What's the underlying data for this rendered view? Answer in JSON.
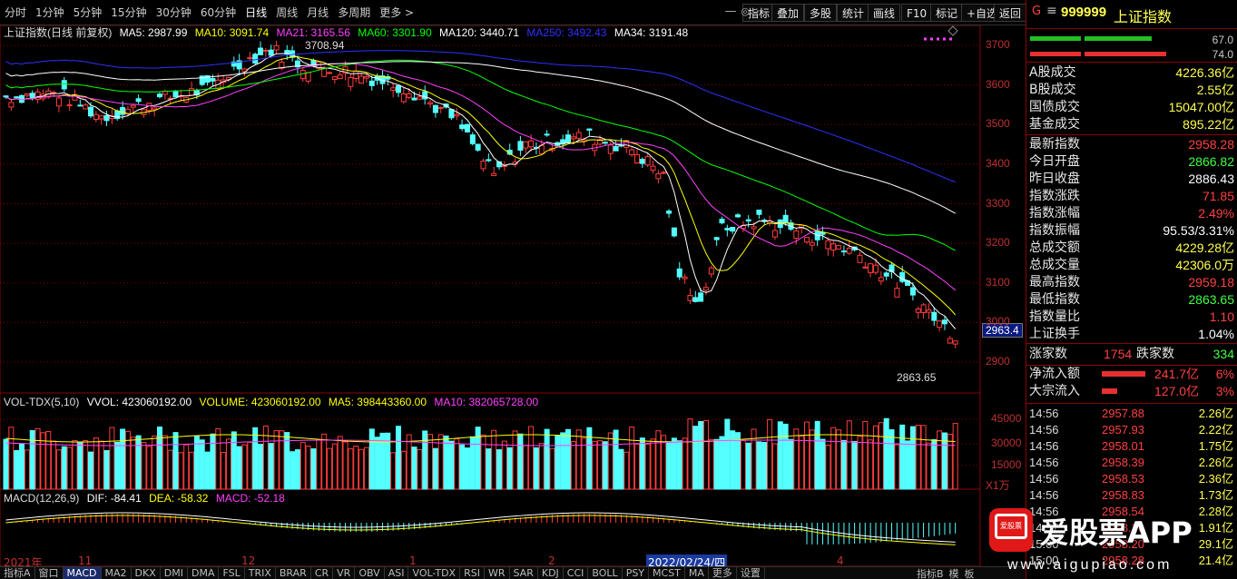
{
  "toolbar": {
    "periods": [
      "分时",
      "1分钟",
      "5分钟",
      "15分钟",
      "30分钟",
      "60分钟",
      "日线",
      "周线",
      "月线",
      "多周期",
      "更多 >"
    ],
    "selected_period": "日线",
    "right_buttons": [
      "指标",
      "叠加",
      "多股",
      "统计",
      "画线",
      "F10",
      "标记",
      "+自选",
      "返回"
    ]
  },
  "colors": {
    "up": "#ff3c3c",
    "down": "#54ffff",
    "ma5": "#ffffff",
    "ma10": "#ffff00",
    "ma21": "#ff40ff",
    "ma60": "#00ff00",
    "ma120": "#ffffff",
    "ma250": "#3030ff",
    "grid": "#8b0000"
  },
  "main_legend": {
    "title": "上证指数(日线 前复权)",
    "ma5": "MA5: 2987.99",
    "ma10": "MA10: 3091.74",
    "ma21": "MA21: 3165.56",
    "ma60": "MA60: 3301.90",
    "ma120": "MA120: 3440.71",
    "ma250": "MA250: 3492.43",
    "ma34": "MA34: 3191.48"
  },
  "annotations": {
    "high": "3708.94",
    "low": "2863.65",
    "current": "2963.4"
  },
  "price_axis": [
    "3700",
    "3600",
    "3500",
    "3400",
    "3300",
    "3200",
    "3100",
    "3000",
    "2900"
  ],
  "volume_legend": {
    "name": "VOL-TDX(5,10)",
    "vvol": "VVOL: 423060192.00",
    "volume": "VOLUME: 423060192.00",
    "ma5": "MA5: 398443360.00",
    "ma10": "MA10: 382065728.00"
  },
  "volume_axis": [
    "45000",
    "30000",
    "15000"
  ],
  "volume_unit": "X1万",
  "macd_legend": {
    "name": "MACD(12,26,9)",
    "dif": "DIF: -84.41",
    "dea": "DEA: -58.32",
    "macd": "MACD: -52.18"
  },
  "x_axis": {
    "labels": [
      "2021年",
      "11",
      "12",
      "1",
      "2",
      "4"
    ],
    "cursor_date": "2022/02/24/四"
  },
  "indicators": [
    "指标A",
    "窗口",
    "MACD",
    "MA2",
    "DKX",
    "DMI",
    "DMA",
    "FSL",
    "TRIX",
    "BRAR",
    "CR",
    "VR",
    "OBV",
    "ASI",
    "VOL-TDX",
    "RSI",
    "WR",
    "SAR",
    "KDJ",
    "CCI",
    "BOLL",
    "PSY",
    "MCST",
    "MA",
    "更多",
    "设置"
  ],
  "selected_indicator": "MACD",
  "bottom_right": [
    "指标B",
    "模",
    "板"
  ],
  "right_panel": {
    "code": "999999",
    "name": "上证指数",
    "letter": "G",
    "menu": "≡",
    "ratio1": "67.0",
    "ratio2": "74.0",
    "rows1": [
      {
        "k": "A股成交",
        "v": "4226.36亿",
        "c": "#ffff50"
      },
      {
        "k": "B股成交",
        "v": "2.55亿",
        "c": "#ffff50"
      },
      {
        "k": "国债成交",
        "v": "15047.00亿",
        "c": "#ffff50"
      },
      {
        "k": "基金成交",
        "v": "895.22亿",
        "c": "#ffff50"
      }
    ],
    "rows2": [
      {
        "k": "最新指数",
        "v": "2958.28",
        "c": "#ff4040"
      },
      {
        "k": "今日开盘",
        "v": "2866.82",
        "c": "#40ff40"
      },
      {
        "k": "昨日收盘",
        "v": "2886.43",
        "c": "#ffffff"
      },
      {
        "k": "指数涨跌",
        "v": "71.85",
        "c": "#ff4040"
      },
      {
        "k": "指数涨幅",
        "v": "2.49%",
        "c": "#ff4040"
      },
      {
        "k": "指数振幅",
        "v": "95.53/3.31%",
        "c": "#ffffff"
      },
      {
        "k": "总成交额",
        "v": "4229.28亿",
        "c": "#ffff50"
      },
      {
        "k": "总成交量",
        "v": "42306.0万",
        "c": "#ffff50"
      },
      {
        "k": "最高指数",
        "v": "2959.18",
        "c": "#ff4040"
      },
      {
        "k": "最低指数",
        "v": "2863.65",
        "c": "#40ff40"
      },
      {
        "k": "指数量比",
        "v": "1.10",
        "c": "#ff4040"
      },
      {
        "k": "上证换手",
        "v": "1.04%",
        "c": "#ffffff"
      }
    ],
    "breadth": {
      "up_label": "涨家数",
      "up": "1754",
      "down_label": "跌家数",
      "down": "334"
    },
    "flow": [
      {
        "k": "净流入额",
        "v": "241.7亿",
        "p": "6%",
        "frac": 0.68
      },
      {
        "k": "大宗流入",
        "v": "127.0亿",
        "p": "3%",
        "frac": 0.24
      }
    ],
    "ticks": [
      {
        "t": "14:56",
        "p": "2957.88",
        "v": "2.26亿"
      },
      {
        "t": "14:56",
        "p": "2957.93",
        "v": "2.22亿"
      },
      {
        "t": "14:56",
        "p": "2958.01",
        "v": "1.75亿"
      },
      {
        "t": "14:56",
        "p": "2958.39",
        "v": "2.26亿"
      },
      {
        "t": "14:56",
        "p": "2958.53",
        "v": "2.36亿"
      },
      {
        "t": "14:56",
        "p": "2958.83",
        "v": "1.73亿"
      },
      {
        "t": "14:56",
        "p": "2958.54",
        "v": "2.28亿"
      },
      {
        "t": "14:57",
        "p": "2958.26",
        "v": "1.91亿"
      },
      {
        "t": "15:00",
        "p": "2958.20",
        "v": "29.1亿"
      },
      {
        "t": "15:00",
        "p": "2958.28",
        "v": "21.4亿"
      }
    ]
  },
  "watermark": {
    "text": "爱股票APP",
    "url": "www.aigupiao.com",
    "logo": "爱股票"
  }
}
